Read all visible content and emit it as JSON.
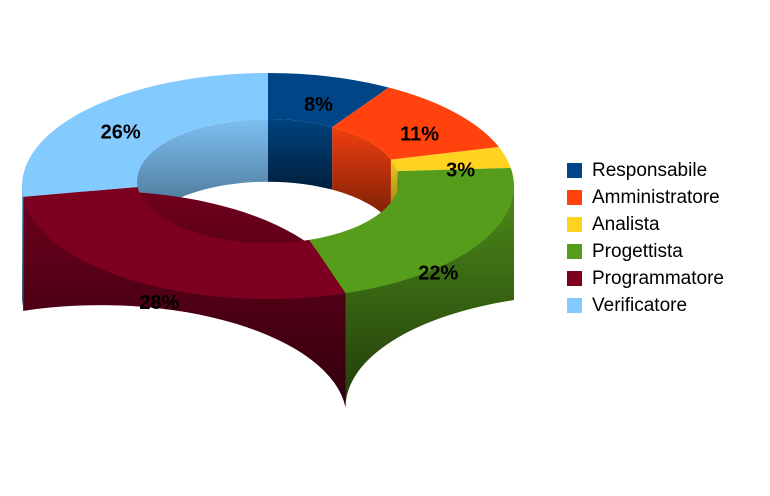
{
  "chart_data": {
    "type": "pie",
    "variant": "3d-donut",
    "title": "",
    "legend_position": "right",
    "slices": [
      {
        "name": "Responsabile",
        "value": 8,
        "label": "8%",
        "color": "#004586"
      },
      {
        "name": "Amministratore",
        "value": 11,
        "label": "11%",
        "color": "#ff420e"
      },
      {
        "name": "Analista",
        "value": 3,
        "label": "3%",
        "color": "#ffd320"
      },
      {
        "name": "Progettista",
        "value": 22,
        "label": "22%",
        "color": "#579d1c"
      },
      {
        "name": "Programmatore",
        "value": 28,
        "label": "28%",
        "color": "#7e0021"
      },
      {
        "name": "Verificatore",
        "value": 26,
        "label": "26%",
        "color": "#83caff"
      }
    ]
  }
}
